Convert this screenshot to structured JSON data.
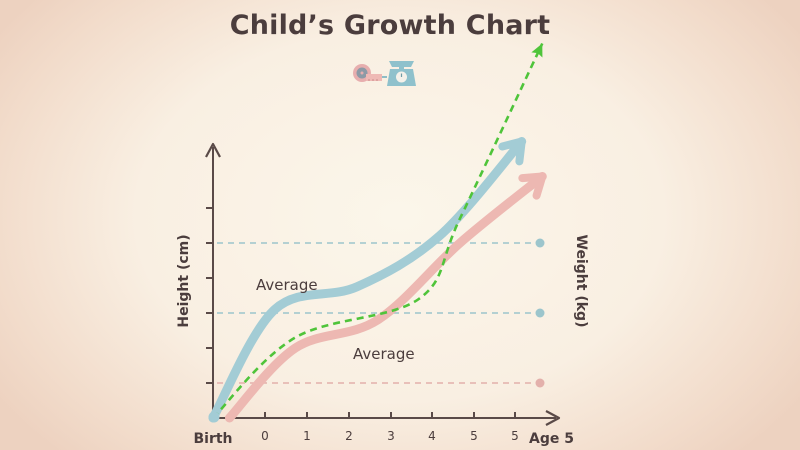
{
  "chart_data": {
    "type": "line",
    "title": "Child’s Growth Chart",
    "xlabel": "Age 5",
    "ylabel": "Height (cm)",
    "y2label": "Weight (kg)",
    "x_tick_labels": [
      "Birth",
      "0",
      "1",
      "2",
      "3",
      "4",
      "5",
      "5"
    ],
    "y_ticks": 6,
    "grid": false,
    "reference_lines": [
      {
        "name": "upper-blue-reference",
        "level": 5,
        "color": "#9cc5cc"
      },
      {
        "name": "average-blue-reference",
        "level": 3,
        "color": "#9cc5cc"
      },
      {
        "name": "pink-reference",
        "level": 1,
        "color": "#e3b0ab"
      }
    ],
    "annotations": [
      {
        "name": "average-label-height",
        "text": "Average"
      },
      {
        "name": "average-label-weight",
        "text": "Average"
      }
    ],
    "series": [
      {
        "name": "height",
        "color": "#a3ccd5",
        "style": "solid-arrow",
        "x": [
          0,
          1.5,
          3.5,
          5.5,
          7.5
        ],
        "y": [
          0,
          3.1,
          3.75,
          5.2,
          7.9
        ]
      },
      {
        "name": "weight",
        "color": "#edb8b2",
        "style": "solid-arrow",
        "x": [
          0.4,
          2,
          4,
          6,
          8
        ],
        "y": [
          0,
          2.0,
          2.8,
          5.0,
          6.9
        ]
      },
      {
        "name": "trend",
        "color": "#4fc43a",
        "style": "dashed-arrow",
        "x": [
          0,
          2,
          5,
          6,
          8
        ],
        "y": [
          0,
          2.3,
          3.4,
          5.7,
          10.7
        ]
      }
    ],
    "icons": [
      "measuring-tape-icon",
      "scale-icon"
    ]
  }
}
